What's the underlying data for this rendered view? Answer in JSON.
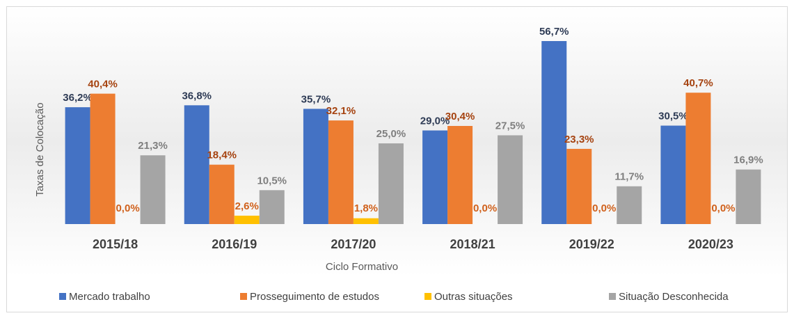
{
  "chart_data": {
    "type": "bar",
    "x_label": "Ciclo Formativo",
    "y_label": "Taxas de Colocação",
    "categories": [
      "2015/18",
      "2016/19",
      "2017/20",
      "2018/21",
      "2019/22",
      "2020/23"
    ],
    "series": [
      {
        "name": "Mercado trabalho",
        "color": "#4472c4",
        "label_color": "#2e3b55",
        "values": [
          36.2,
          36.8,
          35.7,
          29.0,
          56.7,
          30.5
        ],
        "value_labels": [
          "36,2%",
          "36,8%",
          "35,7%",
          "29,0%",
          "56,7%",
          "30,5%"
        ]
      },
      {
        "name": "Prosseguimento de estudos",
        "color": "#ed7d31",
        "label_color": "#a5420f",
        "values": [
          40.4,
          18.4,
          32.1,
          30.4,
          23.3,
          40.7
        ],
        "value_labels": [
          "40,4%",
          "18,4%",
          "32,1%",
          "30,4%",
          "23,3%",
          "40,7%"
        ]
      },
      {
        "name": "Outras situações",
        "color": "#ffc000",
        "label_color": "#d0611c",
        "values": [
          0.0,
          2.6,
          1.8,
          0.0,
          0.0,
          0.0
        ],
        "value_labels": [
          "0,0%",
          "2,6%",
          "1,8%",
          "0,0%",
          "0,0%",
          "0,0%"
        ]
      },
      {
        "name": "Situação Desconhecida",
        "color": "#a5a5a5",
        "label_color": "#7f7f7f",
        "values": [
          21.3,
          10.5,
          25.0,
          27.5,
          11.7,
          16.9
        ],
        "value_labels": [
          "21,3%",
          "10,5%",
          "25,0%",
          "27,5%",
          "11,7%",
          "16,9%"
        ]
      }
    ],
    "ylim": [
      0,
      60
    ],
    "legend": "bottom"
  }
}
